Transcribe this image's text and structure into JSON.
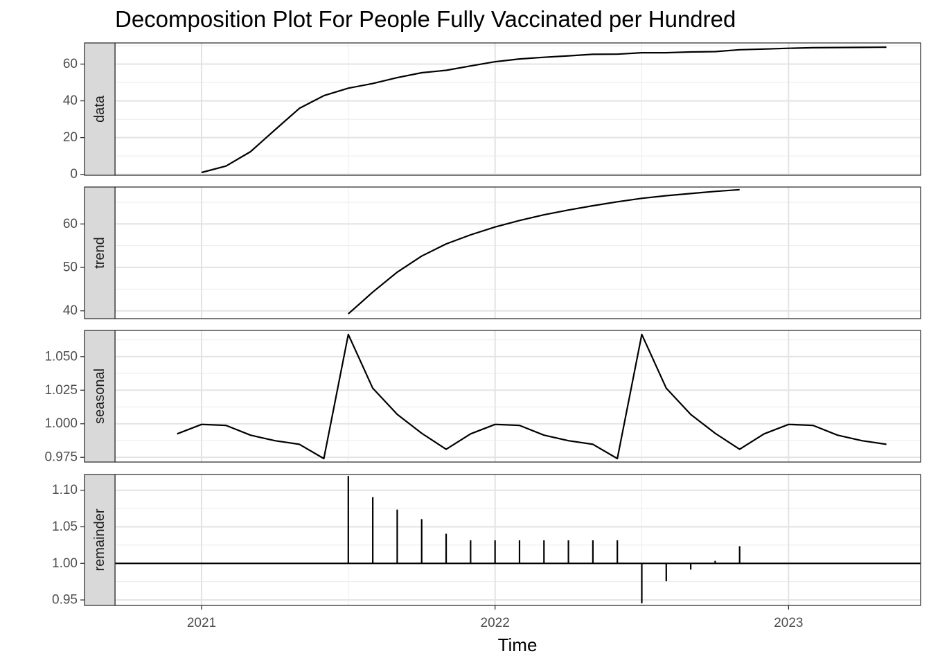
{
  "chart_data": {
    "type": "line",
    "title": "Decomposition Plot For People Fully Vaccinated per Hundred",
    "xlabel": "Time",
    "x_ticks": [
      {
        "label": "2021",
        "value": 2021.0
      },
      {
        "label": "2022",
        "value": 2022.0
      },
      {
        "label": "2023",
        "value": 2023.0
      }
    ],
    "xlim": [
      2020.705,
      2023.45
    ],
    "grid": true,
    "facets": [
      {
        "label": "data",
        "kind": "line",
        "ylim": [
          -0.5,
          71.5
        ],
        "y_ticks": [
          {
            "label": "0",
            "value": 0
          },
          {
            "label": "20",
            "value": 20
          },
          {
            "label": "40",
            "value": 40
          },
          {
            "label": "60",
            "value": 60
          }
        ],
        "start": 2021.0,
        "values": [
          1.0,
          4.5,
          12.3,
          24.2,
          35.9,
          42.8,
          46.9,
          49.4,
          52.6,
          55.3,
          56.6,
          59.0,
          61.3,
          62.8,
          63.7,
          64.5,
          65.3,
          65.4,
          66.2,
          66.2,
          66.6,
          66.8,
          67.8,
          68.2,
          68.6,
          68.9,
          69.0,
          69.1,
          69.2
        ]
      },
      {
        "label": "trend",
        "kind": "line",
        "ylim": [
          38.2,
          68.5
        ],
        "y_ticks": [
          {
            "label": "40",
            "value": 40
          },
          {
            "label": "50",
            "value": 50
          },
          {
            "label": "60",
            "value": 60
          }
        ],
        "start": 2021.5,
        "values": [
          39.3,
          44.3,
          48.9,
          52.6,
          55.4,
          57.5,
          59.3,
          60.8,
          62.1,
          63.2,
          64.2,
          65.1,
          65.9,
          66.5,
          67.0,
          67.5,
          67.9
        ]
      },
      {
        "label": "seasonal",
        "kind": "line",
        "ylim": [
          0.9715,
          1.0695
        ],
        "y_ticks": [
          {
            "label": "0.975",
            "value": 0.975
          },
          {
            "label": "1.000",
            "value": 1.0
          },
          {
            "label": "1.025",
            "value": 1.025
          },
          {
            "label": "1.050",
            "value": 1.05
          }
        ],
        "start": 2020.9167,
        "values": [
          0.9925,
          0.9995,
          0.9988,
          0.9915,
          0.9874,
          0.9847,
          0.9741,
          1.0665,
          1.0265,
          1.007,
          0.9929,
          0.981,
          0.9925,
          0.9995,
          0.9988,
          0.9915,
          0.9874,
          0.9847,
          0.9741,
          1.0665,
          1.0265,
          1.007,
          0.9929,
          0.981,
          0.9925,
          0.9995,
          0.9988,
          0.9915,
          0.9874,
          0.9847
        ]
      },
      {
        "label": "remainder",
        "kind": "spikes",
        "baseline": 1.0,
        "ylim": [
          0.9425,
          1.1215
        ],
        "y_ticks": [
          {
            "label": "0.95",
            "value": 0.95
          },
          {
            "label": "1.00",
            "value": 1.0
          },
          {
            "label": "1.05",
            "value": 1.05
          },
          {
            "label": "1.10",
            "value": 1.1
          }
        ],
        "start": 2021.5,
        "values": [
          1.1195,
          1.0905,
          1.0735,
          1.0605,
          1.0405,
          1.0315,
          1.0315,
          1.0315,
          1.0315,
          1.0315,
          1.0315,
          1.0315,
          0.9455,
          0.9755,
          0.9915,
          1.0035,
          1.0235
        ]
      }
    ]
  }
}
